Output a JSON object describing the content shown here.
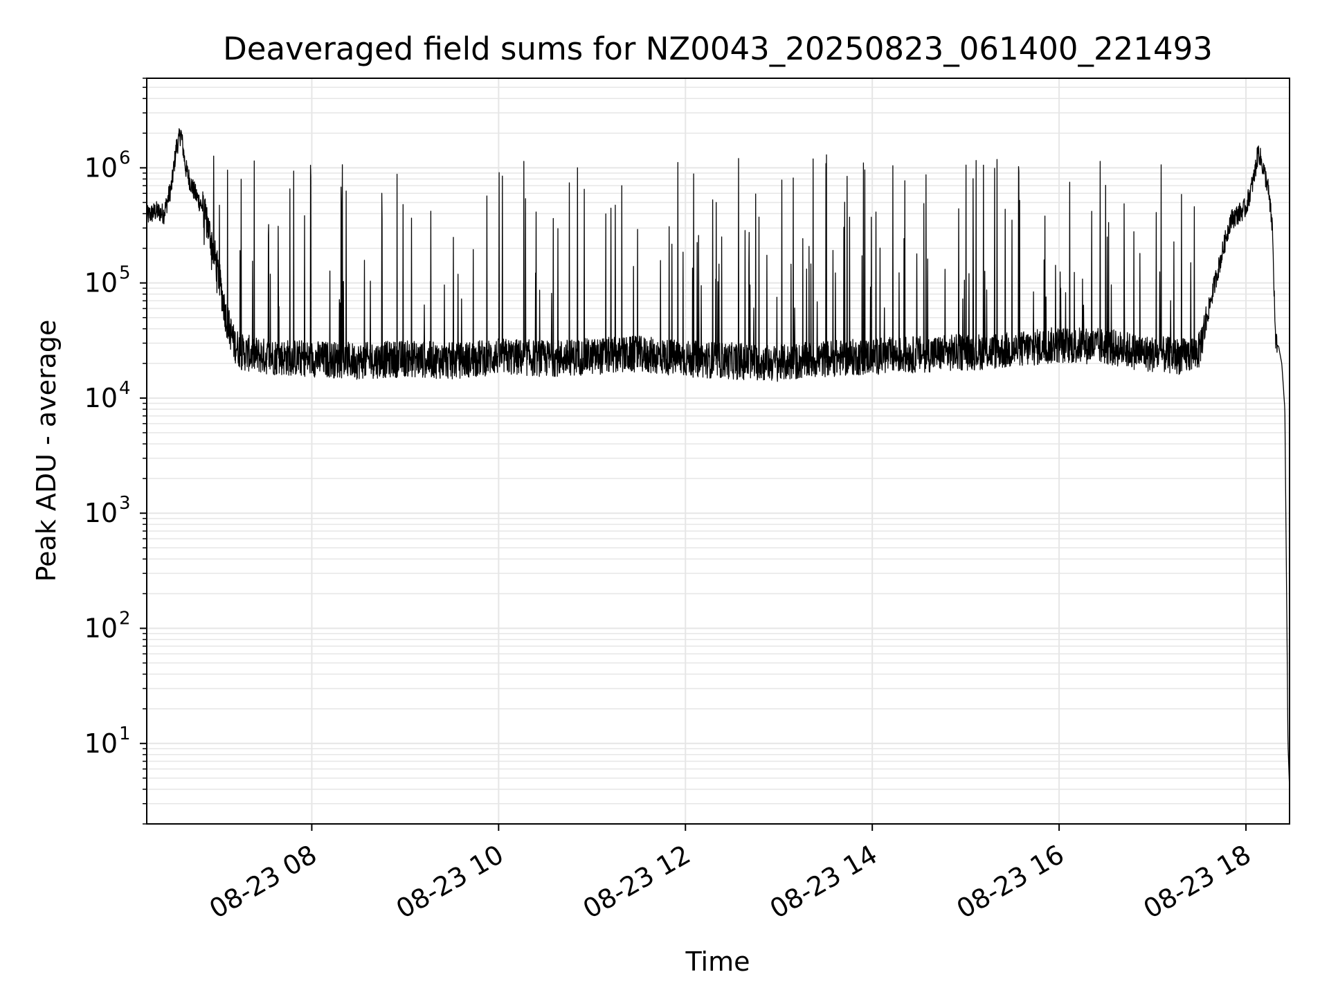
{
  "chart_data": {
    "type": "line",
    "title": "Deaveraged field sums for NZ0043_20250823_061400_221493",
    "xlabel": "Time",
    "ylabel": "Peak ADU - average",
    "yscale": "log",
    "ylim": [
      2,
      6000000
    ],
    "xlim": [
      "2025-08-23 06:14",
      "2025-08-23 18:28"
    ],
    "x_ticks": [
      {
        "value": "2025-08-23 08:00",
        "label": "08-23 08"
      },
      {
        "value": "2025-08-23 10:00",
        "label": "08-23 10"
      },
      {
        "value": "2025-08-23 12:00",
        "label": "08-23 12"
      },
      {
        "value": "2025-08-23 14:00",
        "label": "08-23 14"
      },
      {
        "value": "2025-08-23 16:00",
        "label": "08-23 16"
      },
      {
        "value": "2025-08-23 18:00",
        "label": "08-23 18"
      }
    ],
    "y_ticks": [
      {
        "value": 10,
        "base": "10",
        "exp": "1"
      },
      {
        "value": 100,
        "base": "10",
        "exp": "2"
      },
      {
        "value": 1000,
        "base": "10",
        "exp": "3"
      },
      {
        "value": 10000,
        "base": "10",
        "exp": "4"
      },
      {
        "value": 100000,
        "base": "10",
        "exp": "5"
      },
      {
        "value": 1000000,
        "base": "10",
        "exp": "6"
      }
    ],
    "grid": "major and minor",
    "line_color": "#000000",
    "grid_color": "#e6e6e6",
    "series": [
      {
        "x": [
          "2025-08-23 06:14",
          "2025-08-23 06:20",
          "2025-08-23 06:25",
          "2025-08-23 06:30",
          "2025-08-23 06:33",
          "2025-08-23 06:36",
          "2025-08-23 06:39",
          "2025-08-23 06:42",
          "2025-08-23 06:45",
          "2025-08-23 06:50",
          "2025-08-23 06:55",
          "2025-08-23 07:00",
          "2025-08-23 07:05",
          "2025-08-23 07:10",
          "2025-08-23 07:15",
          "2025-08-23 07:30",
          "2025-08-23 08:00",
          "2025-08-23 08:30",
          "2025-08-23 09:00",
          "2025-08-23 09:30",
          "2025-08-23 10:00",
          "2025-08-23 10:30",
          "2025-08-23 11:00",
          "2025-08-23 11:30",
          "2025-08-23 12:00",
          "2025-08-23 12:30",
          "2025-08-23 13:00",
          "2025-08-23 13:30",
          "2025-08-23 14:00",
          "2025-08-23 14:30",
          "2025-08-23 15:00",
          "2025-08-23 15:30",
          "2025-08-23 16:00",
          "2025-08-23 16:30",
          "2025-08-23 17:00",
          "2025-08-23 17:20",
          "2025-08-23 17:30",
          "2025-08-23 17:40",
          "2025-08-23 17:50",
          "2025-08-23 18:00",
          "2025-08-23 18:05",
          "2025-08-23 18:08",
          "2025-08-23 18:11",
          "2025-08-23 18:14",
          "2025-08-23 18:17",
          "2025-08-23 18:19",
          "2025-08-23 18:21",
          "2025-08-23 18:23",
          "2025-08-23 18:25",
          "2025-08-23 18:27",
          "2025-08-23 18:28"
        ],
        "y": [
          380000,
          420000,
          400000,
          700000,
          1500000,
          2000000,
          1000000,
          750000,
          600000,
          450000,
          250000,
          120000,
          50000,
          30000,
          25000,
          23000,
          22000,
          21000,
          22000,
          21000,
          23000,
          22000,
          23000,
          24000,
          22000,
          21000,
          20000,
          22000,
          23000,
          24000,
          25000,
          26000,
          29000,
          28000,
          24000,
          23000,
          26000,
          100000,
          350000,
          450000,
          800000,
          1400000,
          1000000,
          700000,
          300000,
          30000,
          28000,
          20000,
          8000,
          10,
          4
        ]
      }
    ],
    "spikes": {
      "description_visible": "frequent vertical spikes rising to about 1e5 to 1.3e6 across the session",
      "x_range": [
        "2025-08-23 06:50",
        "2025-08-23 17:35"
      ],
      "peak_range": [
        60000,
        1300000
      ]
    }
  }
}
